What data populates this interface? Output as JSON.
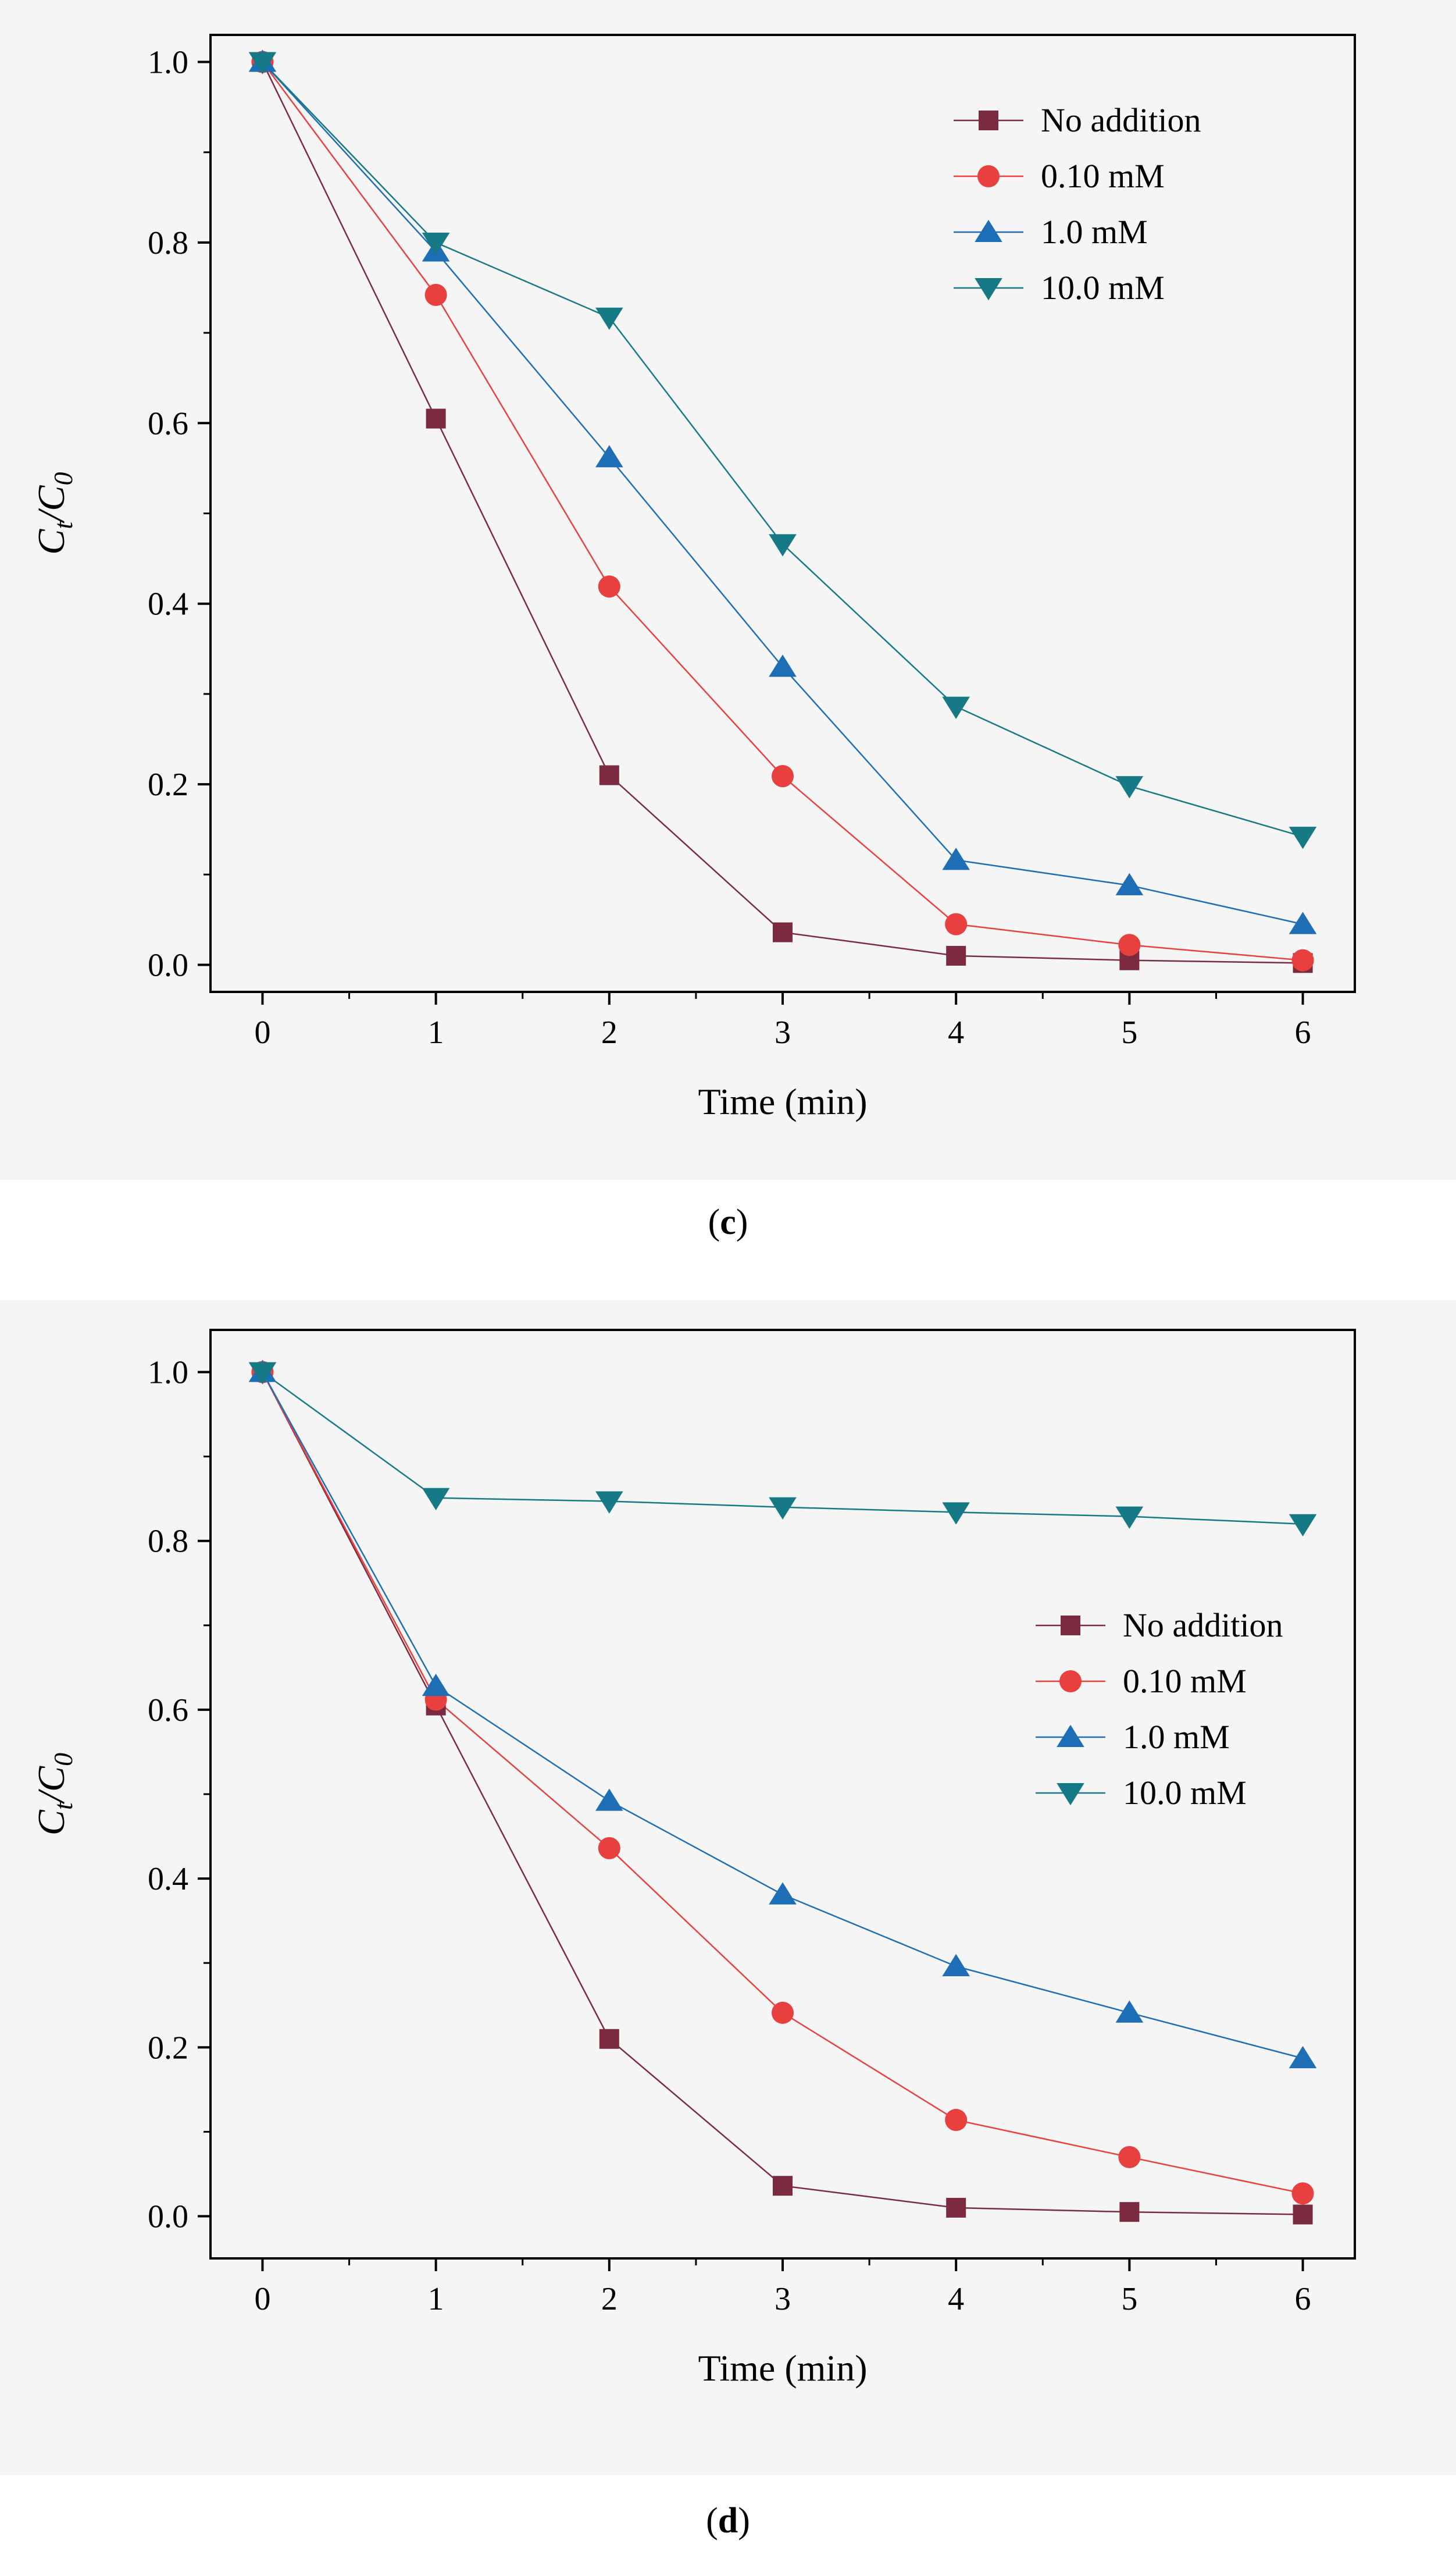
{
  "chart_data": [
    {
      "type": "line",
      "panel_label": "c",
      "caption_open": "(",
      "caption_close": ")",
      "x": [
        0,
        1,
        2,
        3,
        4,
        5,
        6
      ],
      "xlabel": "Time (min)",
      "ylabel_main": "C",
      "ylabel_sub1": "t",
      "ylabel_slash": "/",
      "ylabel_sub2": "0",
      "xlim": [
        -0.3,
        6.3
      ],
      "ylim": [
        -0.03,
        1.03
      ],
      "xticks": [
        "0",
        "1",
        "2",
        "3",
        "4",
        "5",
        "6"
      ],
      "yticks": [
        "0.0",
        "0.2",
        "0.4",
        "0.6",
        "0.8",
        "1.0"
      ],
      "legend_position": "top-right",
      "series": [
        {
          "name": "No addition",
          "marker": "square",
          "color": "#7b2a3f",
          "values": [
            1.0,
            0.605,
            0.21,
            0.036,
            0.01,
            0.005,
            0.002
          ]
        },
        {
          "name": "0.10 mM",
          "marker": "circle",
          "color": "#e8403f",
          "values": [
            1.0,
            0.742,
            0.419,
            0.209,
            0.045,
            0.022,
            0.005
          ]
        },
        {
          "name": "1.0 mM",
          "marker": "triangle-up",
          "color": "#1e6eb5",
          "values": [
            1.0,
            0.79,
            0.562,
            0.33,
            0.116,
            0.088,
            0.045
          ]
        },
        {
          "name": "10.0 mM",
          "marker": "triangle-down",
          "color": "#157a85",
          "values": [
            1.0,
            0.8,
            0.717,
            0.466,
            0.286,
            0.198,
            0.142
          ]
        }
      ]
    },
    {
      "type": "line",
      "panel_label": "d",
      "caption_open": "(",
      "caption_close": ")",
      "x": [
        0,
        1,
        2,
        3,
        4,
        5,
        6
      ],
      "xlabel": "Time (min)",
      "ylabel_main": "C",
      "ylabel_sub1": "t",
      "ylabel_slash": "/",
      "ylabel_sub2": "0",
      "xlim": [
        -0.3,
        6.3
      ],
      "ylim": [
        -0.05,
        1.05
      ],
      "xticks": [
        "0",
        "1",
        "2",
        "3",
        "4",
        "5",
        "6"
      ],
      "yticks": [
        "0.0",
        "0.2",
        "0.4",
        "0.6",
        "0.8",
        "1.0"
      ],
      "legend_position": "middle-right",
      "series": [
        {
          "name": "No addition",
          "marker": "square",
          "color": "#7b2a3f",
          "values": [
            1.0,
            0.605,
            0.21,
            0.036,
            0.01,
            0.005,
            0.002
          ]
        },
        {
          "name": "0.10 mM",
          "marker": "circle",
          "color": "#e8403f",
          "values": [
            1.0,
            0.612,
            0.436,
            0.241,
            0.114,
            0.07,
            0.027
          ]
        },
        {
          "name": "1.0 mM",
          "marker": "triangle-up",
          "color": "#1e6eb5",
          "values": [
            1.0,
            0.628,
            0.492,
            0.381,
            0.296,
            0.241,
            0.187
          ]
        },
        {
          "name": "10.0 mM",
          "marker": "triangle-down",
          "color": "#157a85",
          "values": [
            1.0,
            0.851,
            0.847,
            0.84,
            0.834,
            0.829,
            0.82
          ]
        }
      ]
    }
  ]
}
